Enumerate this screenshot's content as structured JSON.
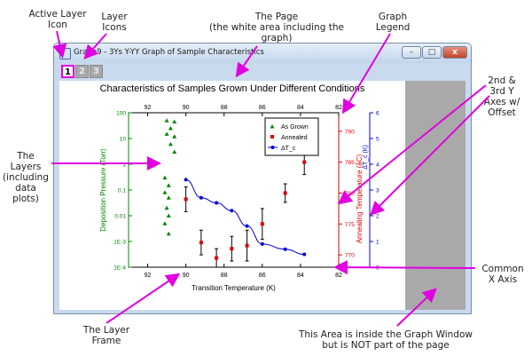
{
  "callouts": {
    "active_layer_icon": "Active Layer\nIcon",
    "layer_icons": "Layer\nIcons",
    "the_page": "The Page\n(the white area including the\ngraph)",
    "graph_legend": "Graph\nLegend",
    "second_third_y": "2nd &\n3rd Y\nAxes w/\nOffset",
    "the_layers": "The\nLayers\n(including\ndata\nplots)",
    "common_x_axis": "Common\nX Axis",
    "layer_frame": "The Layer\nFrame",
    "not_page_area": "This Area is inside the Graph Window\nbut is NOT part of the page"
  },
  "window": {
    "title": "Graph9 - 3Ys Y-YY Graph of Sample Characteristics",
    "minimize": "–",
    "maximize": "□",
    "close": "x"
  },
  "layer_tabs": [
    "1",
    "2",
    "3"
  ],
  "graph": {
    "title": "Characteristics of Samples Grown Under Different Conditions",
    "xlabel": "Transition Temperature (K)",
    "y1label": "Deposition Pressure (Torr)",
    "y2label": "Annealing Temperature (åC)",
    "y3label": "ΔT_c (K)",
    "legend": [
      "As Grown",
      "Annealed",
      "ΔT_c"
    ]
  },
  "chart_data": {
    "type": "scatter",
    "x_ticks": [
      "92",
      "90",
      "88",
      "86",
      "84",
      "82"
    ],
    "y1_ticks": [
      "100",
      "10",
      "1",
      "0.1",
      "0.01",
      "1E-3",
      "1E-4"
    ],
    "y2_ticks": [
      "790",
      "785",
      "780",
      "775",
      "770"
    ],
    "y3_ticks": [
      "0",
      "1",
      "2",
      "3",
      "4",
      "5",
      "6"
    ],
    "xlim": [
      93,
      82
    ],
    "y1_scale": "log",
    "y1lim": [
      0.0001,
      100
    ],
    "y2lim": [
      768,
      793
    ],
    "y3lim": [
      0,
      6
    ],
    "series": [
      {
        "name": "As Grown",
        "axis": "y1",
        "color": "#008800",
        "marker": "triangle",
        "points": [
          [
            91.0,
            50
          ],
          [
            90.6,
            45
          ],
          [
            90.8,
            25
          ],
          [
            91.0,
            15
          ],
          [
            90.6,
            12
          ],
          [
            90.8,
            6
          ],
          [
            90.6,
            3
          ],
          [
            91.1,
            0.3
          ],
          [
            90.9,
            0.15
          ],
          [
            91.1,
            0.08
          ],
          [
            90.9,
            0.05
          ],
          [
            91.0,
            0.02
          ],
          [
            90.9,
            0.01
          ],
          [
            91.1,
            0.005
          ],
          [
            90.9,
            0.002
          ]
        ]
      },
      {
        "name": "Annealed",
        "axis": "y2",
        "color": "#dd0000",
        "marker": "square",
        "points": [
          [
            90.0,
            779.0
          ],
          [
            89.2,
            772.0
          ],
          [
            88.4,
            769.5
          ],
          [
            87.6,
            771.0
          ],
          [
            86.8,
            771.5
          ],
          [
            86.0,
            775.0
          ],
          [
            84.8,
            780.0
          ],
          [
            83.8,
            785.0
          ]
        ],
        "errors": [
          2.0,
          2.0,
          1.5,
          2.0,
          2.5,
          2.5,
          1.5,
          2.0
        ]
      },
      {
        "name": "ΔT_c",
        "axis": "y3",
        "color": "#0000dd",
        "marker": "circle",
        "line": true,
        "points": [
          [
            90.0,
            3.4
          ],
          [
            89.2,
            2.7
          ],
          [
            88.4,
            2.5
          ],
          [
            87.6,
            2.2
          ],
          [
            86.8,
            1.6
          ],
          [
            86.0,
            0.9
          ],
          [
            84.8,
            0.7
          ],
          [
            83.8,
            0.5
          ]
        ]
      }
    ],
    "legend_position": "top-right"
  }
}
